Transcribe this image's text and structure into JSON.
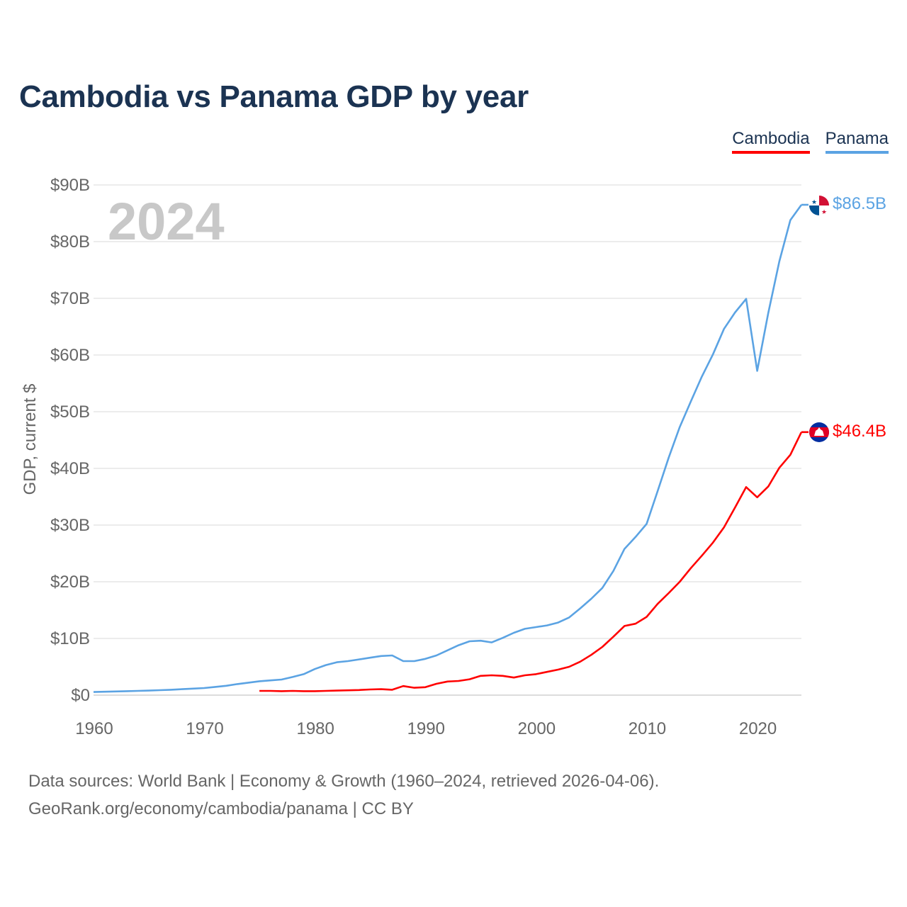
{
  "title": "Cambodia vs Panama GDP by year",
  "legend": {
    "cambodia": "Cambodia",
    "panama": "Panama"
  },
  "year_watermark": "2024",
  "footer": {
    "line1": "Data sources: World Bank | Economy & Growth (1960–2024, retrieved 2026-04-06).",
    "line2": "GeoRank.org/economy/cambodia/panama | CC BY"
  },
  "colors": {
    "cambodia": "#ff0000",
    "panama": "#5ba3e3",
    "grid": "#e6e6e6",
    "text": "#1b3352",
    "watermark": "#c8c8c8"
  },
  "chart_data": {
    "type": "line",
    "title": "Cambodia vs Panama GDP by year",
    "xlabel": "",
    "ylabel": "GDP, current $",
    "xlim": [
      1960,
      2024
    ],
    "ylim": [
      0,
      90
    ],
    "x_ticks": [
      1960,
      1970,
      1980,
      1990,
      2000,
      2010,
      2020
    ],
    "x_tick_labels": [
      "1960",
      "1970",
      "1980",
      "1990",
      "2000",
      "2010",
      "2020"
    ],
    "y_ticks": [
      0,
      10,
      20,
      30,
      40,
      50,
      60,
      70,
      80,
      90
    ],
    "y_tick_labels": [
      "$0",
      "$10B",
      "$20B",
      "$30B",
      "$40B",
      "$50B",
      "$60B",
      "$70B",
      "$80B",
      "$90B"
    ],
    "grid": true,
    "legend_position": "top-right",
    "series": [
      {
        "name": "Cambodia",
        "end_label": "$46.4B",
        "x": [
          1975,
          1976,
          1977,
          1978,
          1979,
          1980,
          1981,
          1982,
          1983,
          1984,
          1985,
          1986,
          1987,
          1988,
          1989,
          1990,
          1991,
          1992,
          1993,
          1994,
          1995,
          1996,
          1997,
          1998,
          1999,
          2000,
          2001,
          2002,
          2003,
          2004,
          2005,
          2006,
          2007,
          2008,
          2009,
          2010,
          2011,
          2012,
          2013,
          2014,
          2015,
          2016,
          2017,
          2018,
          2019,
          2020,
          2021,
          2022,
          2023,
          2024
        ],
        "values": [
          0.75,
          0.75,
          0.7,
          0.75,
          0.7,
          0.7,
          0.75,
          0.8,
          0.85,
          0.9,
          1.0,
          1.05,
          0.95,
          1.6,
          1.3,
          1.4,
          2.0,
          2.4,
          2.5,
          2.8,
          3.4,
          3.5,
          3.4,
          3.1,
          3.5,
          3.7,
          4.1,
          4.5,
          5.0,
          5.9,
          7.1,
          8.5,
          10.3,
          12.2,
          12.6,
          13.8,
          16.1,
          18.0,
          20.0,
          22.4,
          24.6,
          26.9,
          29.6,
          33.1,
          36.7,
          34.9,
          36.8,
          40.1,
          42.4,
          46.4
        ]
      },
      {
        "name": "Panama",
        "end_label": "$86.5B",
        "x": [
          1960,
          1961,
          1962,
          1963,
          1964,
          1965,
          1966,
          1967,
          1968,
          1969,
          1970,
          1971,
          1972,
          1973,
          1974,
          1975,
          1976,
          1977,
          1978,
          1979,
          1980,
          1981,
          1982,
          1983,
          1984,
          1985,
          1986,
          1987,
          1988,
          1989,
          1990,
          1991,
          1992,
          1993,
          1994,
          1995,
          1996,
          1997,
          1998,
          1999,
          2000,
          2001,
          2002,
          2003,
          2004,
          2005,
          2006,
          2007,
          2008,
          2009,
          2010,
          2011,
          2012,
          2013,
          2014,
          2015,
          2016,
          2017,
          2018,
          2019,
          2020,
          2021,
          2022,
          2023,
          2024
        ],
        "values": [
          0.55,
          0.6,
          0.65,
          0.7,
          0.75,
          0.8,
          0.88,
          0.95,
          1.05,
          1.15,
          1.25,
          1.45,
          1.65,
          1.95,
          2.2,
          2.45,
          2.6,
          2.75,
          3.2,
          3.7,
          4.6,
          5.3,
          5.8,
          6.0,
          6.3,
          6.6,
          6.9,
          7.0,
          6.0,
          6.0,
          6.4,
          7.0,
          7.9,
          8.8,
          9.5,
          9.6,
          9.3,
          10.1,
          11.0,
          11.7,
          12.0,
          12.3,
          12.8,
          13.7,
          15.3,
          17.0,
          18.9,
          21.9,
          25.8,
          27.9,
          30.2,
          36.0,
          41.9,
          47.3,
          51.8,
          56.2,
          60.1,
          64.6,
          67.5,
          69.9,
          57.2,
          67.4,
          76.5,
          83.8,
          86.5
        ]
      }
    ]
  }
}
